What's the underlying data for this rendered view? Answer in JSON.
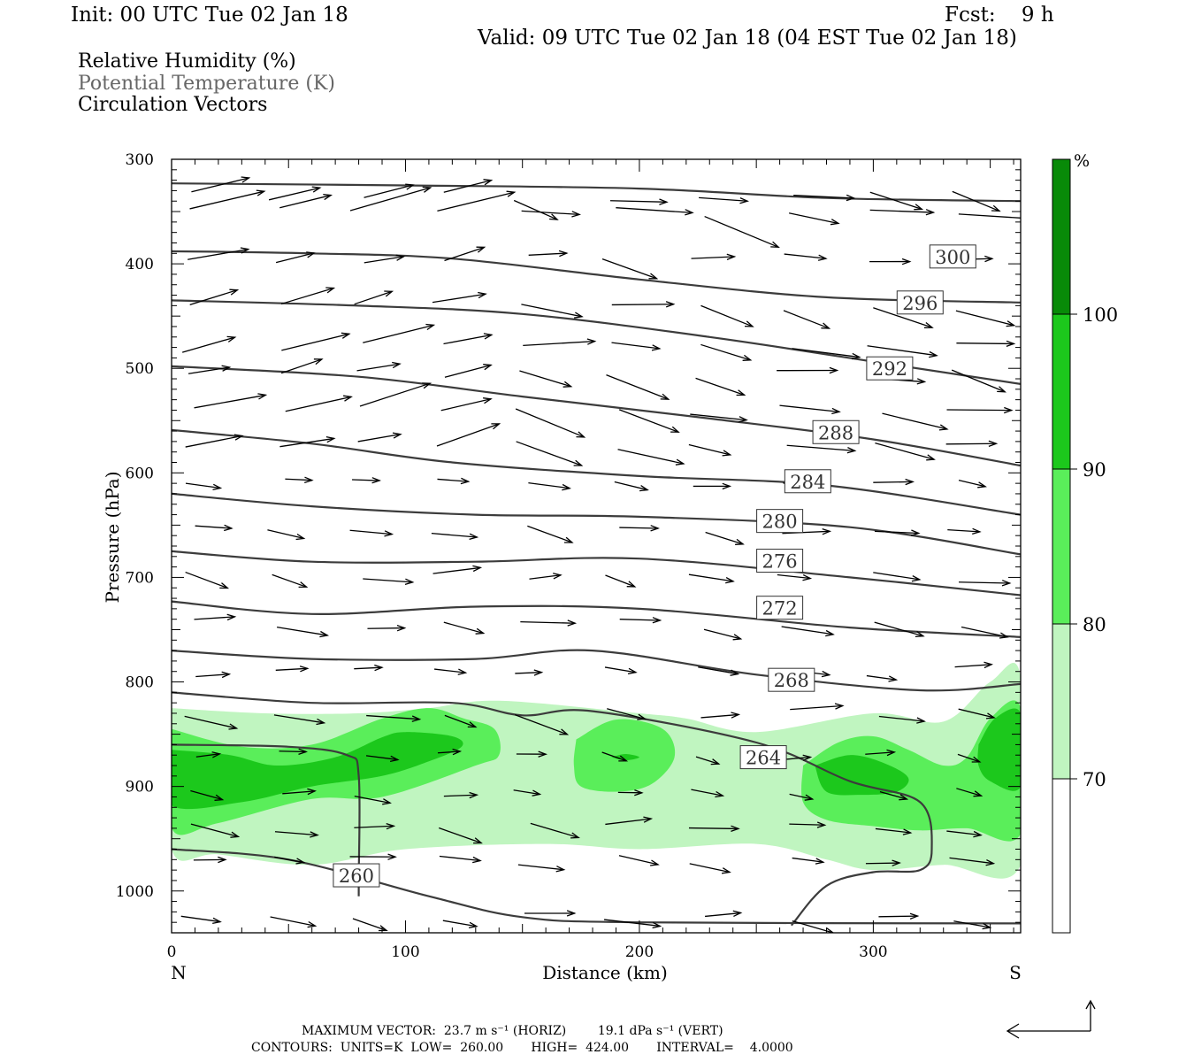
{
  "header": {
    "init": "Init: 00 UTC Tue 02 Jan 18",
    "fcst": "Fcst:    9 h",
    "valid": "Valid: 09 UTC Tue 02 Jan 18 (04 EST Tue 02 Jan 18)"
  },
  "legend": {
    "rh": "Relative Humidity (%)",
    "theta": "Potential Temperature (K)",
    "vectors": "Circulation Vectors"
  },
  "footer": {
    "max_vector": "MAXIMUM VECTOR:  23.7 m s⁻¹ (HORIZ)        19.1 dPa s⁻¹ (VERT)",
    "contours": "CONTOURS:  UNITS=K  LOW=  260.00       HIGH=  424.00       INTERVAL=    4.0000"
  },
  "colors": {
    "rh70": "#c0f5c0",
    "rh80": "#5aee5a",
    "rh90": "#1cc81c",
    "rh100": "#088a08",
    "contour": "#3c3c3c",
    "vector": "#000000"
  },
  "chart_data": {
    "type": "cross-section",
    "xlabel": "Distance (km)",
    "ylabel": "Pressure (hPa)",
    "x_end_labels": [
      "N",
      "S"
    ],
    "xlim": [
      0,
      363
    ],
    "ylim": [
      1040,
      300
    ],
    "x_ticks": [
      0,
      100,
      200,
      300
    ],
    "y_ticks": [
      300,
      400,
      500,
      600,
      700,
      800,
      900,
      1000
    ],
    "colorbar": {
      "unit": "%",
      "levels": [
        70,
        80,
        90,
        100
      ],
      "colors": [
        "#c0f5c0",
        "#5aee5a",
        "#1cc81c",
        "#088a08"
      ]
    },
    "theta_contours": [
      {
        "value": 300,
        "label": "300",
        "label_at": [
          334,
          393
        ],
        "points": [
          [
            0,
            323
          ],
          [
            100,
            325
          ],
          [
            200,
            328
          ],
          [
            280,
            337
          ],
          [
            363,
            340
          ]
        ]
      },
      {
        "value": 296,
        "label": "296",
        "label_at": [
          320,
          437
        ],
        "points": [
          [
            0,
            388
          ],
          [
            60,
            390
          ],
          [
            120,
            395
          ],
          [
            200,
            415
          ],
          [
            280,
            432
          ],
          [
            363,
            437
          ]
        ]
      },
      {
        "value": 292,
        "label": "292",
        "label_at": [
          307,
          500
        ],
        "points": [
          [
            0,
            435
          ],
          [
            80,
            440
          ],
          [
            150,
            448
          ],
          [
            230,
            470
          ],
          [
            310,
            497
          ],
          [
            363,
            515
          ]
        ]
      },
      {
        "value": 288,
        "label": "288",
        "label_at": [
          284,
          561
        ],
        "points": [
          [
            0,
            498
          ],
          [
            80,
            508
          ],
          [
            150,
            527
          ],
          [
            230,
            548
          ],
          [
            300,
            568
          ],
          [
            363,
            593
          ]
        ]
      },
      {
        "value": 284,
        "label": "284",
        "label_at": [
          272,
          608
        ],
        "points": [
          [
            0,
            559
          ],
          [
            60,
            572
          ],
          [
            120,
            590
          ],
          [
            200,
            603
          ],
          [
            280,
            612
          ],
          [
            363,
            640
          ]
        ]
      },
      {
        "value": 280,
        "label": "280",
        "label_at": [
          260,
          646
        ],
        "points": [
          [
            0,
            620
          ],
          [
            60,
            632
          ],
          [
            130,
            640
          ],
          [
            200,
            642
          ],
          [
            290,
            652
          ],
          [
            363,
            678
          ]
        ]
      },
      {
        "value": 276,
        "label": "276",
        "label_at": [
          260,
          684
        ],
        "points": [
          [
            0,
            675
          ],
          [
            60,
            685
          ],
          [
            130,
            685
          ],
          [
            200,
            682
          ],
          [
            290,
            700
          ],
          [
            363,
            717
          ]
        ]
      },
      {
        "value": 272,
        "label": "272",
        "label_at": [
          260,
          729
        ],
        "points": [
          [
            0,
            723
          ],
          [
            60,
            735
          ],
          [
            130,
            728
          ],
          [
            200,
            730
          ],
          [
            290,
            748
          ],
          [
            363,
            757
          ]
        ]
      },
      {
        "value": 268,
        "label": "268",
        "label_at": [
          265,
          798
        ],
        "points": [
          [
            0,
            770
          ],
          [
            60,
            778
          ],
          [
            130,
            778
          ],
          [
            180,
            770
          ],
          [
            250,
            793
          ],
          [
            320,
            808
          ],
          [
            363,
            802
          ]
        ]
      },
      {
        "value": 264,
        "label": "264",
        "label_at": [
          253,
          872
        ],
        "points": [
          [
            0,
            810
          ],
          [
            60,
            820
          ],
          [
            120,
            820
          ],
          [
            150,
            832
          ],
          [
            180,
            828
          ],
          [
            250,
            858
          ],
          [
            290,
            895
          ],
          [
            320,
            915
          ],
          [
            325,
            960
          ],
          [
            320,
            980
          ],
          [
            300,
            982
          ],
          [
            280,
            995
          ],
          [
            265,
            1033
          ]
        ]
      },
      {
        "value": 260,
        "label": "260",
        "label_at": [
          79,
          985
        ],
        "points": [
          [
            0,
            860
          ],
          [
            50,
            862
          ],
          [
            75,
            870
          ],
          [
            80,
            890
          ],
          [
            80,
            990
          ],
          [
            80,
            1005
          ]
        ]
      },
      {
        "value": 264,
        "label": "",
        "label_at": null,
        "points": [
          [
            0,
            960
          ],
          [
            50,
            970
          ],
          [
            110,
            1005
          ],
          [
            150,
            1025
          ],
          [
            200,
            1030
          ],
          [
            363,
            1031
          ]
        ]
      }
    ],
    "rh_shading": "bands of 70-100% RH between roughly 820 and 980 hPa across the section",
    "vectors": "horizontal/vertical circulation vectors, predominantly eastward with slight descent"
  }
}
